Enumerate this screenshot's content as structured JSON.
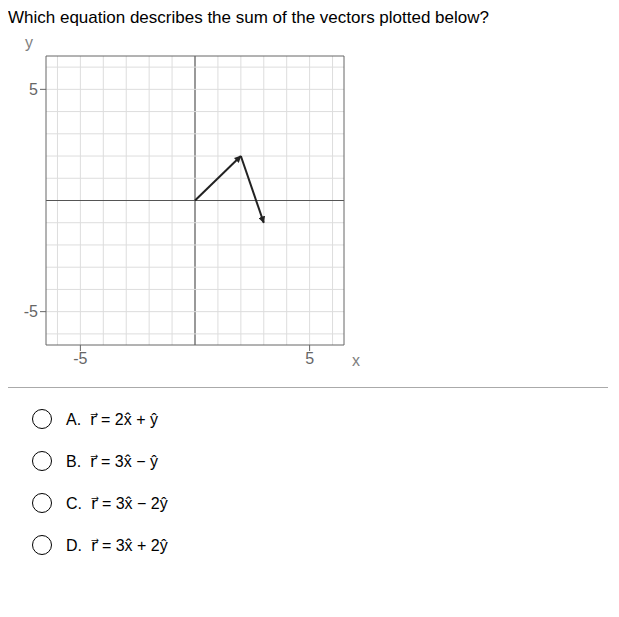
{
  "chart_data": {
    "type": "vector",
    "title": "Which equation describes the sum of the vectors plotted below?",
    "xlabel": "x",
    "ylabel": "y",
    "vectors": [
      {
        "start": [
          0,
          0
        ],
        "end": [
          2,
          2
        ]
      },
      {
        "start": [
          2,
          2
        ],
        "end": [
          3,
          -1
        ]
      }
    ],
    "color": "#222222",
    "xlim": [
      -6.5,
      6.5
    ],
    "ylim": [
      -6.5,
      6.5
    ],
    "xticks": [
      -5,
      5
    ],
    "yticks": [
      -5,
      5
    ],
    "grid": true,
    "options": [
      "A.  r⃗ = 2x̂ + ŷ",
      "B.  r⃗ = 3x̂ − ŷ",
      "C.  r⃗ = 3x̂ − 2ŷ",
      "D.  r⃗ = 3x̂ + 2ŷ"
    ]
  }
}
